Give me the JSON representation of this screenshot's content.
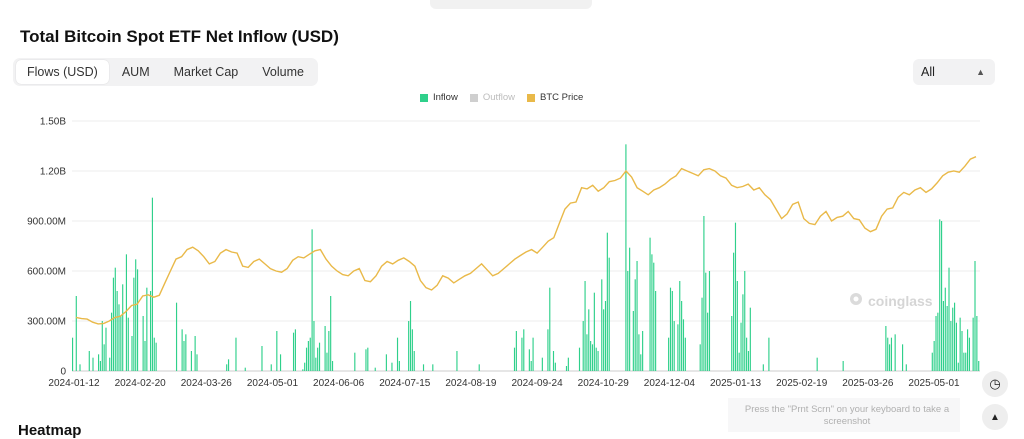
{
  "header": {
    "title": "Total Bitcoin Spot ETF Net Inflow (USD)"
  },
  "tabs": [
    {
      "label": "Flows (USD)",
      "active": true
    },
    {
      "label": "AUM",
      "active": false
    },
    {
      "label": "Market Cap",
      "active": false
    },
    {
      "label": "Volume",
      "active": false
    }
  ],
  "range_select": {
    "value": "All"
  },
  "legend": [
    {
      "label": "Inflow",
      "color": "#2fd08b",
      "dimmed": false
    },
    {
      "label": "Outflow",
      "color": "#cfcfcf",
      "dimmed": true
    },
    {
      "label": "BTC Price",
      "color": "#e9b949",
      "dimmed": false
    }
  ],
  "watermark": "coinglass",
  "hint_text": "Press the \"Prnt Scrn\" on your keyboard to take a screenshot",
  "section_below": "Heatmap",
  "colors": {
    "inflow": "#2fd08b",
    "price": "#e9b949",
    "grid": "#ececec",
    "axis_text": "#333333"
  },
  "chart_data": {
    "type": "bar",
    "title": "Total Bitcoin Spot ETF Net Inflow (USD)",
    "y_ticks": [
      "0",
      "300.00M",
      "600.00M",
      "900.00M",
      "1.20B",
      "1.50B"
    ],
    "ylim": [
      0,
      1500
    ],
    "y_unit": "M USD",
    "x_ticks": [
      "2024-01-12",
      "2024-02-20",
      "2024-03-26",
      "2024-05-01",
      "2024-06-06",
      "2024-07-15",
      "2024-08-19",
      "2024-09-24",
      "2024-10-29",
      "2024-12-04",
      "2025-01-13",
      "2025-02-19",
      "2025-03-26",
      "2025-05-01"
    ],
    "series": [
      {
        "name": "Inflow",
        "type": "bar",
        "values": [
          200,
          0,
          450,
          0,
          40,
          0,
          0,
          0,
          0,
          120,
          0,
          80,
          0,
          0,
          100,
          60,
          300,
          160,
          260,
          0,
          80,
          350,
          560,
          620,
          480,
          400,
          330,
          520,
          0,
          700,
          320,
          0,
          210,
          560,
          670,
          610,
          0,
          0,
          330,
          180,
          500,
          0,
          480,
          1040,
          200,
          170,
          0,
          0,
          0,
          0,
          0,
          0,
          0,
          0,
          0,
          0,
          410,
          0,
          0,
          250,
          180,
          220,
          0,
          0,
          120,
          0,
          210,
          100,
          0,
          0,
          0,
          0,
          0,
          0,
          0,
          0,
          0,
          0,
          0,
          0,
          0,
          0,
          0,
          40,
          70,
          0,
          0,
          0,
          200,
          0,
          0,
          0,
          0,
          20,
          0,
          0,
          0,
          0,
          0,
          0,
          0,
          0,
          150,
          0,
          0,
          0,
          0,
          40,
          0,
          0,
          240,
          0,
          100,
          0,
          0,
          0,
          0,
          0,
          0,
          230,
          250,
          0,
          0,
          0,
          10,
          50,
          140,
          180,
          200,
          850,
          300,
          80,
          140,
          170,
          0,
          0,
          270,
          110,
          240,
          450,
          60,
          0,
          0,
          0,
          0,
          0,
          0,
          0,
          0,
          0,
          0,
          0,
          110,
          0,
          0,
          0,
          0,
          0,
          130,
          140,
          0,
          0,
          0,
          20,
          0,
          0,
          0,
          0,
          0,
          100,
          0,
          0,
          50,
          0,
          0,
          200,
          60,
          0,
          0,
          0,
          0,
          300,
          420,
          250,
          120,
          0,
          0,
          0,
          0,
          40,
          0,
          0,
          0,
          0,
          40,
          0,
          0,
          0,
          0,
          0,
          0,
          0,
          0,
          0,
          0,
          0,
          0,
          120,
          0,
          0,
          0,
          0,
          0,
          0,
          0,
          0,
          0,
          0,
          0,
          40,
          0,
          0,
          0,
          0,
          0,
          0,
          0,
          0,
          0,
          0,
          0,
          0,
          0,
          0,
          0,
          0,
          0,
          0,
          140,
          240,
          0,
          0,
          200,
          250,
          0,
          0,
          130,
          60,
          200,
          0,
          0,
          0,
          0,
          80,
          0,
          0,
          250,
          500,
          0,
          120,
          50,
          0,
          0,
          0,
          0,
          0,
          30,
          80,
          0,
          0,
          0,
          0,
          0,
          140,
          0,
          300,
          540,
          220,
          370,
          180,
          160,
          470,
          140,
          120,
          0,
          550,
          370,
          420,
          830,
          680,
          0,
          0,
          0,
          0,
          0,
          0,
          0,
          0,
          1360,
          600,
          740,
          0,
          360,
          550,
          660,
          220,
          100,
          240,
          0,
          0,
          0,
          800,
          700,
          650,
          480,
          0,
          0,
          0,
          0,
          0,
          0,
          200,
          500,
          480,
          300,
          0,
          280,
          540,
          420,
          310,
          200,
          0,
          0,
          0,
          0,
          0,
          0,
          0,
          160,
          440,
          930,
          590,
          350,
          600,
          0,
          0,
          0,
          0,
          0,
          0,
          0,
          0,
          0,
          0,
          0,
          330,
          710,
          890,
          540,
          110,
          290,
          460,
          600,
          200,
          120,
          380,
          0,
          0,
          0,
          0,
          0,
          0,
          40,
          0,
          0,
          200,
          0,
          0,
          0,
          0,
          0,
          0,
          0,
          0,
          0,
          0,
          0,
          0,
          0,
          0,
          0,
          0,
          0,
          0,
          0,
          0,
          0,
          0,
          0,
          0,
          0,
          80,
          0,
          0,
          0,
          0,
          0,
          0,
          0,
          0,
          0,
          0,
          0,
          0,
          0,
          60,
          0,
          0,
          0,
          0,
          0,
          0,
          0,
          0,
          0,
          0,
          0,
          0,
          0,
          0,
          0,
          0,
          0,
          0,
          0,
          0,
          0,
          0,
          270,
          200,
          160,
          200,
          0,
          220,
          0,
          0,
          0,
          160,
          0,
          40,
          0,
          0,
          0,
          0,
          0,
          0,
          0,
          0,
          0,
          0,
          0,
          0,
          0,
          110,
          180,
          330,
          350,
          910,
          900,
          420,
          500,
          390,
          620,
          300,
          380,
          410,
          290,
          50,
          320,
          240,
          110,
          110,
          250,
          200,
          0,
          320,
          660,
          330,
          60
        ]
      },
      {
        "name": "BTC Price",
        "type": "line",
        "y_axis": "secondary (unlabeled)",
        "values": [
          42500,
          42000,
          41800,
          40500,
          39800,
          40000,
          41000,
          42500,
          43000,
          45000,
          47500,
          48000,
          51500,
          52000,
          51000,
          51800,
          57000,
          62000,
          67000,
          68000,
          71000,
          72000,
          70500,
          68000,
          65000,
          66000,
          69500,
          71000,
          70000,
          69500,
          64000,
          63500,
          66000,
          67000,
          65000,
          63000,
          62000,
          61500,
          63000,
          66500,
          68000,
          67500,
          69000,
          70500,
          71000,
          67000,
          64000,
          62000,
          60500,
          60000,
          62000,
          63000,
          58000,
          57500,
          60000,
          64000,
          66000,
          65000,
          66500,
          67500,
          66000,
          64000,
          58000,
          55000,
          54000,
          56000,
          60000,
          59000,
          57000,
          58500,
          60000,
          61000,
          63000,
          65000,
          62500,
          60000,
          61000,
          63000,
          65000,
          67000,
          68500,
          70000,
          71000,
          69500,
          72000,
          74500,
          76000,
          82000,
          88000,
          90500,
          91000,
          97000,
          96500,
          98000,
          95500,
          97000,
          99500,
          100000,
          101000,
          104000,
          101500,
          97000,
          95500,
          94000,
          96000,
          97000,
          98500,
          100500,
          102000,
          105000,
          104000,
          103000,
          102000,
          104500,
          105000,
          104000,
          102000,
          101000,
          98000,
          97000,
          97500,
          98500,
          96000,
          97000,
          94000,
          92000,
          88000,
          84000,
          86000,
          90000,
          91000,
          84000,
          82000,
          81500,
          85000,
          87000,
          83000,
          84500,
          85000,
          87000,
          84000,
          83500,
          80000,
          78500,
          79500,
          85000,
          88000,
          88500,
          93000,
          95000,
          94000,
          96000,
          97000,
          95000,
          96500,
          99000,
          102000,
          103500,
          104000,
          103500,
          106000,
          109000,
          110000
        ]
      }
    ],
    "x_range": [
      "2024-01-12",
      "2025-05-15"
    ],
    "grid": true,
    "legend_position": "top-center"
  }
}
